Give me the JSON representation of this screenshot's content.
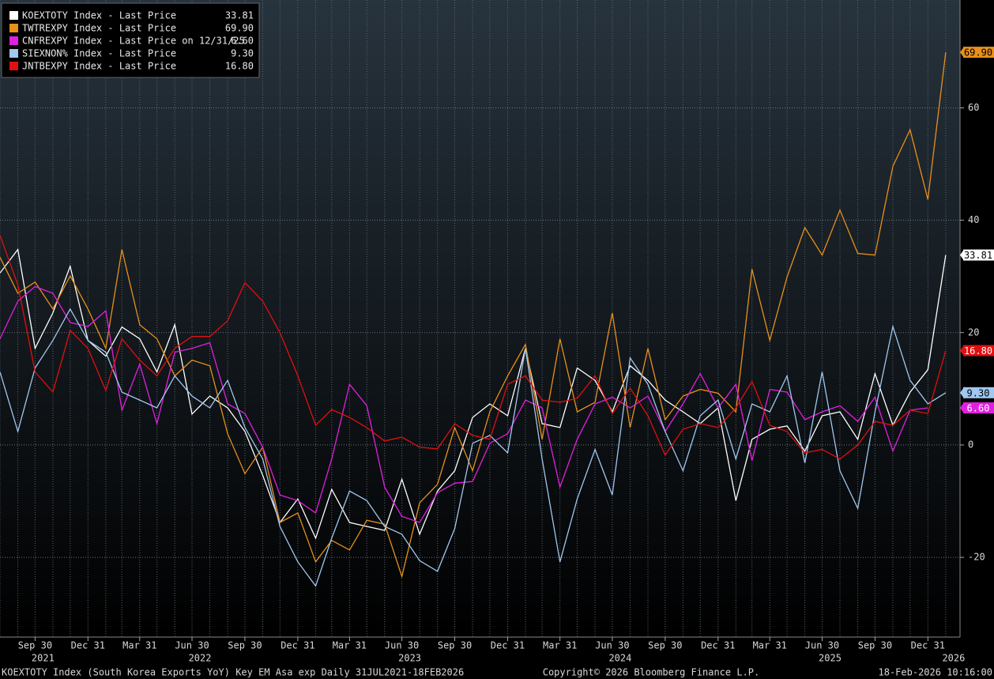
{
  "chart_data": {
    "type": "line",
    "footer_left": "KOEXTOTY Index (South Korea Exports YoY) Key EM Asa exp Daily 31JUL2021-18FEB2026",
    "footer_center": "Copyright© 2026 Bloomberg Finance L.P.",
    "footer_right": "18-Feb-2026 10:16:00",
    "x": [
      "2021-07-31",
      "2021-08-31",
      "2021-09-30",
      "2021-10-31",
      "2021-11-30",
      "2021-12-31",
      "2022-01-31",
      "2022-02-28",
      "2022-03-31",
      "2022-04-30",
      "2022-05-31",
      "2022-06-30",
      "2022-07-31",
      "2022-08-31",
      "2022-09-30",
      "2022-10-31",
      "2022-11-30",
      "2022-12-31",
      "2023-01-31",
      "2023-02-28",
      "2023-03-31",
      "2023-04-30",
      "2023-05-31",
      "2023-06-30",
      "2023-07-31",
      "2023-08-31",
      "2023-09-30",
      "2023-10-31",
      "2023-11-30",
      "2023-12-31",
      "2024-01-31",
      "2024-02-29",
      "2024-03-31",
      "2024-04-30",
      "2024-05-31",
      "2024-06-30",
      "2024-07-31",
      "2024-08-31",
      "2024-09-30",
      "2024-10-31",
      "2024-11-30",
      "2024-12-31",
      "2025-01-31",
      "2025-02-28",
      "2025-03-31",
      "2025-04-30",
      "2025-05-31",
      "2025-06-30",
      "2025-07-31",
      "2025-08-31",
      "2025-09-30",
      "2025-10-31",
      "2025-11-30",
      "2025-12-31",
      "2026-01-31"
    ],
    "xlim": [
      "2021-07-31",
      "2026-02-18"
    ],
    "xticks": [
      {
        "value": "2021-09-30",
        "label": "Sep 30"
      },
      {
        "value": "2021-12-31",
        "label": "Dec 31"
      },
      {
        "value": "2022-03-31",
        "label": "Mar 31"
      },
      {
        "value": "2022-06-30",
        "label": "Jun 30"
      },
      {
        "value": "2022-09-30",
        "label": "Sep 30"
      },
      {
        "value": "2022-12-31",
        "label": "Dec 31"
      },
      {
        "value": "2023-03-31",
        "label": "Mar 31"
      },
      {
        "value": "2023-06-30",
        "label": "Jun 30"
      },
      {
        "value": "2023-09-30",
        "label": "Sep 30"
      },
      {
        "value": "2023-12-31",
        "label": "Dec 31"
      },
      {
        "value": "2024-03-31",
        "label": "Mar 31"
      },
      {
        "value": "2024-06-30",
        "label": "Jun 30"
      },
      {
        "value": "2024-09-30",
        "label": "Sep 30"
      },
      {
        "value": "2024-12-31",
        "label": "Dec 31"
      },
      {
        "value": "2025-03-31",
        "label": "Mar 31"
      },
      {
        "value": "2025-06-30",
        "label": "Jun 30"
      },
      {
        "value": "2025-09-30",
        "label": "Sep 30"
      },
      {
        "value": "2025-12-31",
        "label": "Dec 31"
      }
    ],
    "year_ticks": [
      {
        "value": "2021-09-30",
        "label": "2021"
      },
      {
        "value": "2022-06-30",
        "label": "2022"
      },
      {
        "value": "2023-06-30",
        "label": "2023"
      },
      {
        "value": "2024-06-30",
        "label": "2024"
      },
      {
        "value": "2025-06-30",
        "label": "2025"
      },
      {
        "value": "2026-01-31",
        "label": "2026"
      }
    ],
    "ylim": [
      -34.2,
      79.2
    ],
    "yticks": [
      -20,
      0,
      20,
      40,
      60
    ],
    "grid": true,
    "legend": "top-left",
    "series": [
      {
        "name": "KOEXTOTY Index - Last Price",
        "last_price_label": "33.81",
        "color": "#ffffff",
        "tag_text": "#000000",
        "values": [
          30.6,
          34.8,
          17.2,
          23.5,
          31.8,
          18.6,
          15.8,
          21,
          18.9,
          13,
          21.4,
          5.5,
          8.7,
          6.6,
          2.4,
          -5.4,
          -13.8,
          -9.6,
          -16.6,
          -7.9,
          -13.8,
          -14.5,
          -15.2,
          -6.1,
          -15.9,
          -8.2,
          -4.6,
          4.9,
          7.3,
          5.2,
          17.2,
          3.8,
          3.1,
          13.7,
          11.5,
          5.9,
          14.1,
          11.5,
          8,
          5.9,
          3.8,
          6.6,
          -9.9,
          1,
          2.8,
          3.4,
          -1.1,
          5.2,
          5.9,
          1,
          12.7,
          3.5,
          9.4,
          13.4,
          33.81
        ]
      },
      {
        "name": "TWTREXPY Index - Last Price",
        "last_price_label": "69.90",
        "color": "#e8901a",
        "tag_text": "#000000",
        "values": [
          33.4,
          27,
          29,
          24.2,
          30.1,
          24.2,
          17.2,
          34.8,
          21.4,
          18.9,
          12.3,
          15.1,
          14.1,
          2,
          -5.1,
          -0.4,
          -13.8,
          -12.1,
          -20.8,
          -17,
          -18.7,
          -13.4,
          -14.1,
          -23.4,
          -10.3,
          -7,
          3.1,
          -4.6,
          5.9,
          12.3,
          17.9,
          1,
          18.9,
          5.9,
          7.6,
          23.5,
          3.1,
          17.2,
          4.5,
          8.7,
          9.9,
          9.2,
          5.9,
          31.3,
          18.6,
          29.9,
          38.7,
          33.8,
          41.8,
          34.1,
          33.8,
          49.6,
          56.1,
          43.7,
          69.9
        ]
      },
      {
        "name": "CNFREXPY Index - Last Price on 12/31/25",
        "last_price_label": "6.60",
        "color": "#e020e0",
        "tag_text": "#ffffff",
        "values": [
          18.9,
          25.6,
          28.2,
          27,
          21.8,
          21.1,
          23.9,
          6.2,
          14.4,
          3.8,
          16.5,
          17.2,
          18.2,
          7.3,
          5.6,
          -0.4,
          -8.9,
          -9.9,
          -12.1,
          -2.5,
          10.8,
          7,
          -7.5,
          -12.7,
          -13.8,
          -8.5,
          -6.8,
          -6.5,
          0.3,
          2,
          8,
          6.6,
          -7.5,
          1,
          7.3,
          8.5,
          6.6,
          8.7,
          2.4,
          7.3,
          12.7,
          6.6,
          10.8,
          -2.8,
          9.9,
          9.4,
          4.5,
          5.9,
          7,
          4.2,
          8.5,
          -1.1,
          6.2,
          6.6,
          null
        ]
      },
      {
        "name": "SIEXNON% Index - Last Price",
        "last_price_label": "9.30",
        "color": "#a0c8f0",
        "tag_text": "#000000",
        "values": [
          13,
          2.4,
          13.7,
          18.6,
          24.2,
          18.6,
          16.5,
          9.4,
          8,
          6.6,
          12.3,
          8.7,
          6.6,
          11.5,
          3.1,
          -2.5,
          -14.5,
          -20.8,
          -25.1,
          -16.6,
          -8.2,
          -9.9,
          -14.5,
          -15.9,
          -20.6,
          -22.5,
          -14.9,
          0.3,
          1.7,
          -1.4,
          17.2,
          -2.5,
          -20.8,
          -9.6,
          -0.8,
          -8.9,
          15.5,
          10.8,
          2.4,
          -4.6,
          5.2,
          8,
          -2.5,
          7.3,
          5.9,
          12.3,
          -3.2,
          13,
          -4.6,
          -11.3,
          5.9,
          21.1,
          11.5,
          7.3,
          9.3
        ]
      },
      {
        "name": "JNTBEXPY Index - Last Price",
        "last_price_label": "16.80",
        "color": "#e01010",
        "tag_text": "#ffffff",
        "values": [
          37.3,
          28.5,
          13,
          9.4,
          20.4,
          17.2,
          9.7,
          18.9,
          15.1,
          12.3,
          17.2,
          19.3,
          19.3,
          22.1,
          28.9,
          25.6,
          20,
          12.3,
          3.5,
          6.3,
          4.9,
          3.1,
          0.7,
          1.4,
          -0.4,
          -0.7,
          3.8,
          1.7,
          1,
          10.8,
          12.3,
          8,
          7.6,
          8.3,
          12.3,
          5.6,
          10.1,
          5.2,
          -1.8,
          2.8,
          3.8,
          3.1,
          6.6,
          11.3,
          3.5,
          2.4,
          -1.4,
          -0.8,
          -2.5,
          0,
          4.2,
          3.5,
          6.2,
          5.6,
          16.8
        ]
      }
    ]
  }
}
